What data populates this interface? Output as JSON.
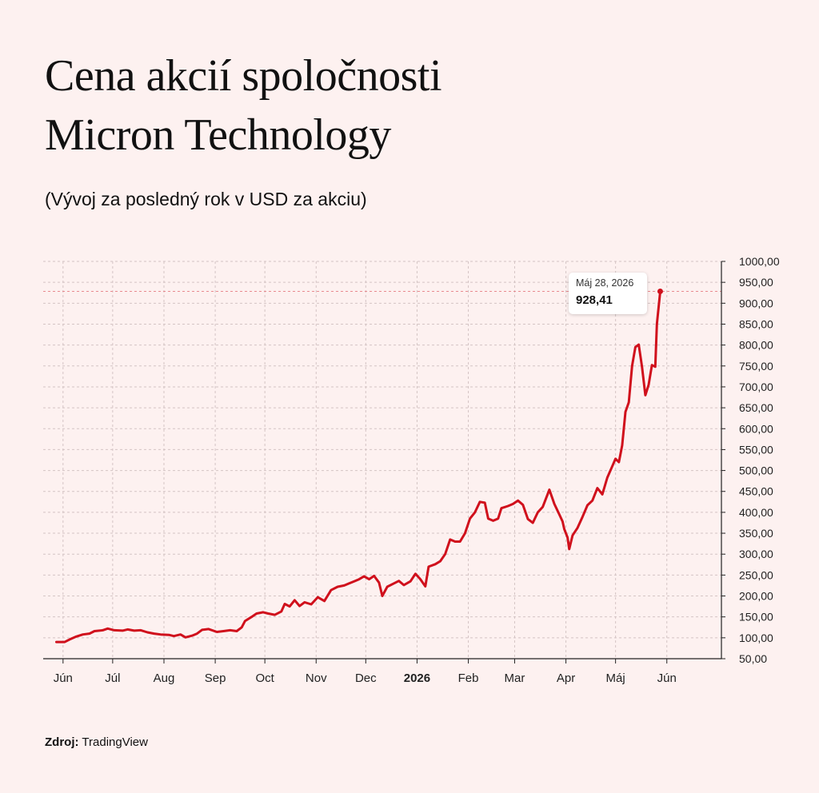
{
  "title_line1": "Cena akcií spoločnosti",
  "title_line2": "Micron Technology",
  "subtitle": "(Vývoj za posledný rok v USD za akciu)",
  "source_label": "Zdroj:",
  "source_value": "TradingView",
  "colors": {
    "background": "#fdf1f0",
    "line": "#d0101c",
    "grid": "#d4c4c4"
  },
  "tooltip": {
    "date": "Máj 28, 2026",
    "value": "928,41"
  },
  "chart_data": {
    "type": "line",
    "title": "Cena akcií spoločnosti Micron Technology",
    "subtitle": "(Vývoj za posledný rok v USD za akciu)",
    "xlabel": "",
    "ylabel": "",
    "ylim": [
      50,
      1000
    ],
    "y_ticks": [
      "1000,00",
      "950,00",
      "900,00",
      "850,00",
      "800,00",
      "750,00",
      "700,00",
      "650,00",
      "600,00",
      "550,00",
      "500,00",
      "450,00",
      "400,00",
      "350,00",
      "300,00",
      "250,00",
      "200,00",
      "150,00",
      "100,00",
      "50,00"
    ],
    "x_ticks": [
      {
        "label": "Jún",
        "date": "2025-06-01",
        "bold": false
      },
      {
        "label": "Júl",
        "date": "2025-07-01",
        "bold": false
      },
      {
        "label": "Aug",
        "date": "2025-08-01",
        "bold": false
      },
      {
        "label": "Sep",
        "date": "2025-09-01",
        "bold": false
      },
      {
        "label": "Oct",
        "date": "2025-10-01",
        "bold": false
      },
      {
        "label": "Nov",
        "date": "2025-11-01",
        "bold": false
      },
      {
        "label": "Dec",
        "date": "2025-12-01",
        "bold": false
      },
      {
        "label": "2026",
        "date": "2026-01-01",
        "bold": true
      },
      {
        "label": "Feb",
        "date": "2026-02-01",
        "bold": false
      },
      {
        "label": "Mar",
        "date": "2026-03-01",
        "bold": false
      },
      {
        "label": "Apr",
        "date": "2026-04-01",
        "bold": false
      },
      {
        "label": "Máj",
        "date": "2026-05-01",
        "bold": false
      },
      {
        "label": "Jún",
        "date": "2026-06-01",
        "bold": false
      }
    ],
    "grid": true,
    "last_point": {
      "date": "2026-05-28",
      "value": 928.41
    },
    "series": [
      {
        "values": [
          [
            "2025-05-28",
            90
          ],
          [
            "2025-06-02",
            90
          ],
          [
            "2025-06-05",
            96
          ],
          [
            "2025-06-09",
            103
          ],
          [
            "2025-06-13",
            108
          ],
          [
            "2025-06-17",
            110
          ],
          [
            "2025-06-20",
            116
          ],
          [
            "2025-06-25",
            118
          ],
          [
            "2025-06-28",
            122
          ],
          [
            "2025-07-02",
            118
          ],
          [
            "2025-07-07",
            117
          ],
          [
            "2025-07-10",
            120
          ],
          [
            "2025-07-14",
            117
          ],
          [
            "2025-07-18",
            118
          ],
          [
            "2025-07-22",
            113
          ],
          [
            "2025-07-26",
            110
          ],
          [
            "2025-07-30",
            108
          ],
          [
            "2025-08-04",
            107
          ],
          [
            "2025-08-07",
            104
          ],
          [
            "2025-08-11",
            108
          ],
          [
            "2025-08-14",
            101
          ],
          [
            "2025-08-18",
            105
          ],
          [
            "2025-08-21",
            110
          ],
          [
            "2025-08-24",
            119
          ],
          [
            "2025-08-28",
            121
          ],
          [
            "2025-09-02",
            114
          ],
          [
            "2025-09-06",
            116
          ],
          [
            "2025-09-10",
            118
          ],
          [
            "2025-09-14",
            116
          ],
          [
            "2025-09-17",
            125
          ],
          [
            "2025-09-19",
            140
          ],
          [
            "2025-09-23",
            150
          ],
          [
            "2025-09-26",
            158
          ],
          [
            "2025-09-30",
            161
          ],
          [
            "2025-10-03",
            158
          ],
          [
            "2025-10-07",
            155
          ],
          [
            "2025-10-11",
            163
          ],
          [
            "2025-10-13",
            181
          ],
          [
            "2025-10-16",
            175
          ],
          [
            "2025-10-19",
            190
          ],
          [
            "2025-10-22",
            176
          ],
          [
            "2025-10-25",
            185
          ],
          [
            "2025-10-29",
            180
          ],
          [
            "2025-11-02",
            197
          ],
          [
            "2025-11-06",
            188
          ],
          [
            "2025-11-10",
            214
          ],
          [
            "2025-11-14",
            222
          ],
          [
            "2025-11-18",
            225
          ],
          [
            "2025-11-21",
            230
          ],
          [
            "2025-11-24",
            235
          ],
          [
            "2025-11-27",
            240
          ],
          [
            "2025-11-30",
            247
          ],
          [
            "2025-12-03",
            240
          ],
          [
            "2025-12-06",
            248
          ],
          [
            "2025-12-09",
            232
          ],
          [
            "2025-12-11",
            200
          ],
          [
            "2025-12-14",
            222
          ],
          [
            "2025-12-18",
            230
          ],
          [
            "2025-12-21",
            236
          ],
          [
            "2025-12-24",
            226
          ],
          [
            "2025-12-28",
            235
          ],
          [
            "2025-12-31",
            253
          ],
          [
            "2026-01-03",
            240
          ],
          [
            "2026-01-06",
            223
          ],
          [
            "2026-01-08",
            270
          ],
          [
            "2026-01-12",
            276
          ],
          [
            "2026-01-15",
            283
          ],
          [
            "2026-01-18",
            300
          ],
          [
            "2026-01-21",
            335
          ],
          [
            "2026-01-24",
            330
          ],
          [
            "2026-01-27",
            330
          ],
          [
            "2026-01-30",
            350
          ],
          [
            "2026-02-02",
            385
          ],
          [
            "2026-02-05",
            400
          ],
          [
            "2026-02-08",
            425
          ],
          [
            "2026-02-11",
            423
          ],
          [
            "2026-02-13",
            385
          ],
          [
            "2026-02-16",
            380
          ],
          [
            "2026-02-19",
            385
          ],
          [
            "2026-02-21",
            410
          ],
          [
            "2026-02-25",
            415
          ],
          [
            "2026-02-28",
            420
          ],
          [
            "2026-03-03",
            428
          ],
          [
            "2026-03-06",
            418
          ],
          [
            "2026-03-09",
            384
          ],
          [
            "2026-03-12",
            375
          ],
          [
            "2026-03-15",
            400
          ],
          [
            "2026-03-18",
            413
          ],
          [
            "2026-03-22",
            454
          ],
          [
            "2026-03-25",
            420
          ],
          [
            "2026-03-28",
            395
          ],
          [
            "2026-03-30",
            378
          ],
          [
            "2026-03-31",
            360
          ],
          [
            "2026-04-02",
            340
          ],
          [
            "2026-04-03",
            312
          ],
          [
            "2026-04-05",
            345
          ],
          [
            "2026-04-08",
            363
          ],
          [
            "2026-04-11",
            389
          ],
          [
            "2026-04-14",
            417
          ],
          [
            "2026-04-17",
            428
          ],
          [
            "2026-04-20",
            458
          ],
          [
            "2026-04-23",
            443
          ],
          [
            "2026-04-26",
            483
          ],
          [
            "2026-04-29",
            510
          ],
          [
            "2026-05-01",
            528
          ],
          [
            "2026-05-03",
            520
          ],
          [
            "2026-05-05",
            560
          ],
          [
            "2026-05-07",
            640
          ],
          [
            "2026-05-09",
            663
          ],
          [
            "2026-05-11",
            750
          ],
          [
            "2026-05-13",
            795
          ],
          [
            "2026-05-15",
            801
          ],
          [
            "2026-05-17",
            748
          ],
          [
            "2026-05-19",
            680
          ],
          [
            "2026-05-21",
            705
          ],
          [
            "2026-05-23",
            752
          ],
          [
            "2026-05-25",
            748
          ],
          [
            "2026-05-26",
            850
          ],
          [
            "2026-05-28",
            928.41
          ]
        ]
      }
    ]
  }
}
